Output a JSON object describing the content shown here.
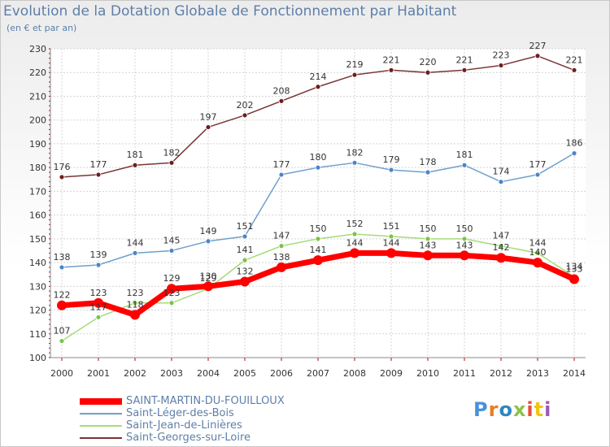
{
  "title": "Evolution de la Dotation Globale de Fonctionnement par Habitant",
  "subtitle": "(en € et par an)",
  "logo": {
    "text": "Proxiti",
    "letter_colors": [
      "#4a90d9",
      "#e67e22",
      "#2e86c1",
      "#8bc34a",
      "#e74c3c",
      "#f1c40f",
      "#9b59b6"
    ]
  },
  "chart_data": {
    "type": "line",
    "title": "Evolution de la Dotation Globale de Fonctionnement par Habitant",
    "subtitle": "(en € et par an)",
    "xlabel": "",
    "ylabel": "",
    "x": [
      "2000",
      "2001",
      "2002",
      "2003",
      "2004",
      "2005",
      "2006",
      "2007",
      "2008",
      "2009",
      "2010",
      "2011",
      "2012",
      "2013",
      "2014"
    ],
    "ylim": [
      100,
      230
    ],
    "yticks": [
      100,
      110,
      120,
      130,
      140,
      150,
      160,
      170,
      180,
      190,
      200,
      210,
      220,
      230
    ],
    "grid": true,
    "legend_position": "bottom-left",
    "series": [
      {
        "name": "SAINT-MARTIN-DU-FOUILLOUX",
        "color": "#ff0000",
        "marker": "#ff0000",
        "width": 7,
        "radius": 6,
        "values": [
          122,
          123,
          118,
          129,
          130,
          132,
          138,
          141,
          144,
          144,
          143,
          143,
          142,
          140,
          133
        ],
        "labels": [
          "122",
          "123",
          "118",
          "129",
          "130",
          "132",
          "138",
          "141",
          "144",
          "144",
          "143",
          "143",
          "142",
          "140",
          "133"
        ]
      },
      {
        "name": "Saint-Léger-des-Bois",
        "color": "#6fa0cc",
        "marker": "#4a86c5",
        "width": 1.5,
        "radius": 3,
        "values": [
          138,
          139,
          144,
          145,
          149,
          151,
          177,
          180,
          182,
          179,
          178,
          181,
          174,
          177,
          186
        ],
        "labels": [
          "138",
          "139",
          "144",
          "145",
          "149",
          "151",
          "177",
          "180",
          "182",
          "179",
          "178",
          "181",
          "174",
          "177",
          "186"
        ]
      },
      {
        "name": "Saint-Jean-de-Linières",
        "color": "#a6db7a",
        "marker": "#7cc24a",
        "width": 1.5,
        "radius": 3,
        "values": [
          107,
          117,
          123,
          123,
          129,
          141,
          147,
          150,
          152,
          151,
          150,
          150,
          147,
          144,
          134
        ],
        "labels": [
          "107",
          "117",
          "123",
          "123",
          "129",
          "141",
          "147",
          "150",
          "152",
          "151",
          "150",
          "150",
          "147",
          "144",
          "134"
        ]
      },
      {
        "name": "Saint-Georges-sur-Loire",
        "color": "#7a3434",
        "marker": "#6e1e1e",
        "width": 1.5,
        "radius": 3,
        "values": [
          176,
          177,
          181,
          182,
          197,
          202,
          208,
          214,
          219,
          221,
          220,
          221,
          223,
          227,
          221
        ],
        "labels": [
          "176",
          "177",
          "181",
          "182",
          "197",
          "202",
          "208",
          "214",
          "219",
          "221",
          "220",
          "221",
          "223",
          "227",
          "221"
        ]
      }
    ]
  }
}
